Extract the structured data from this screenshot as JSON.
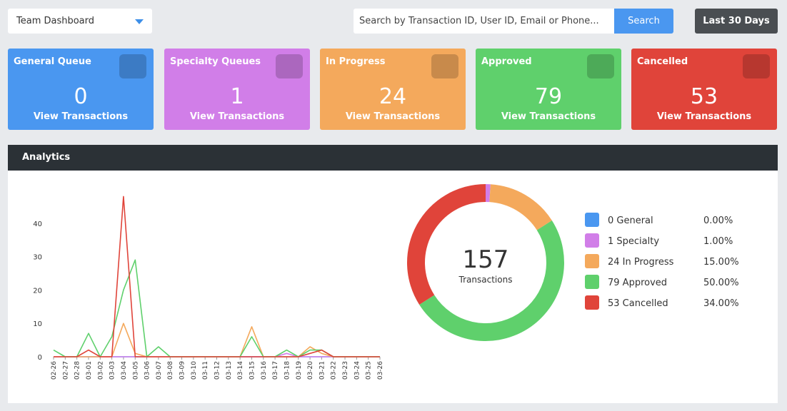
{
  "header": {
    "dropdown": "Team Dashboard",
    "search_placeholder": "Search by Transaction ID, User ID, Email or Phone...",
    "search_button": "Search",
    "range_button": "Last 30 Days"
  },
  "cards": [
    {
      "title": "General Queue",
      "count": 0,
      "link": "View Transactions",
      "color": "#4a97f0"
    },
    {
      "title": "Specialty Queues",
      "count": 1,
      "link": "View Transactions",
      "color": "#d17ee8"
    },
    {
      "title": "In Progress",
      "count": 24,
      "link": "View Transactions",
      "color": "#f4a95c"
    },
    {
      "title": "Approved",
      "count": 79,
      "link": "View Transactions",
      "color": "#5fd06c"
    },
    {
      "title": "Cancelled",
      "count": 53,
      "link": "View Transactions",
      "color": "#e0443a"
    }
  ],
  "analytics": {
    "title": "Analytics"
  },
  "chart_data": [
    {
      "type": "line",
      "categories": [
        "02-26",
        "02-27",
        "02-28",
        "03-01",
        "03-02",
        "03-03",
        "03-04",
        "03-05",
        "03-06",
        "03-07",
        "03-08",
        "03-09",
        "03-10",
        "03-11",
        "03-12",
        "03-13",
        "03-14",
        "03-15",
        "03-16",
        "03-17",
        "03-18",
        "03-19",
        "03-20",
        "03-21",
        "03-22",
        "03-23",
        "03-24",
        "03-25",
        "03-26"
      ],
      "series": [
        {
          "color": "#4a97f0",
          "values": [
            0,
            0,
            0,
            0,
            0,
            0,
            0,
            0,
            0,
            0,
            0,
            0,
            0,
            0,
            0,
            0,
            0,
            0,
            0,
            0,
            0,
            0,
            0,
            0,
            0,
            0,
            0,
            0,
            0
          ]
        },
        {
          "color": "#d17ee8",
          "values": [
            0,
            0,
            0,
            0,
            0,
            0,
            0,
            0,
            0,
            0,
            0,
            0,
            0,
            0,
            0,
            0,
            0,
            0,
            0,
            0,
            1,
            0,
            0,
            0,
            0,
            0,
            0,
            0,
            0
          ]
        },
        {
          "color": "#f4a95c",
          "values": [
            0,
            0,
            0,
            0,
            0,
            0,
            10,
            1,
            0,
            0,
            0,
            0,
            0,
            0,
            0,
            0,
            0,
            9,
            0,
            0,
            0,
            0,
            3,
            1,
            0,
            0,
            0,
            0,
            0
          ]
        },
        {
          "color": "#5fd06c",
          "values": [
            2,
            0,
            0,
            7,
            0,
            6,
            20,
            29,
            0,
            3,
            0,
            0,
            0,
            0,
            0,
            0,
            0,
            6,
            0,
            0,
            2,
            0,
            2,
            2,
            0,
            0,
            0,
            0,
            0
          ]
        },
        {
          "color": "#e0443a",
          "values": [
            0,
            0,
            0,
            2,
            0,
            0,
            48,
            0,
            0,
            0,
            0,
            0,
            0,
            0,
            0,
            0,
            0,
            0,
            0,
            0,
            0,
            0,
            1,
            2,
            0,
            0,
            0,
            0,
            0
          ]
        }
      ],
      "ylim": [
        0,
        50
      ],
      "yticks": [
        0,
        10,
        20,
        30,
        40
      ]
    },
    {
      "type": "pie",
      "categories": [
        "0 General",
        "1 Specialty",
        "24 In Progress",
        "79 Approved",
        "53 Cancelled"
      ],
      "values": [
        0,
        1,
        15,
        50,
        34
      ],
      "value_labels": [
        "0.00%",
        "1.00%",
        "15.00%",
        "50.00%",
        "34.00%"
      ],
      "colors": [
        "#4a97f0",
        "#d17ee8",
        "#f4a95c",
        "#5fd06c",
        "#e0443a"
      ],
      "center_value": 157,
      "center_label": "Transactions"
    }
  ]
}
